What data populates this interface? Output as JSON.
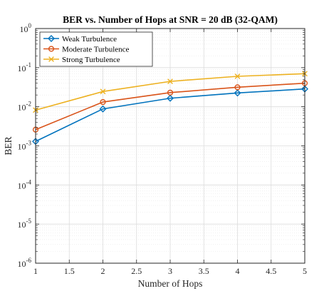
{
  "chart_data": {
    "type": "line",
    "title": "BER vs. Number of Hops at SNR = 20 dB (32-QAM)",
    "xlabel": "Number of Hops",
    "ylabel": "BER",
    "xlim": [
      1,
      5
    ],
    "ylim": [
      1e-06,
      1
    ],
    "yscale": "log",
    "grid": true,
    "minor_grid": true,
    "legend_position": "top-left",
    "x": [
      1,
      2,
      3,
      4,
      5
    ],
    "x_ticks": [
      "1",
      "1.5",
      "2",
      "2.5",
      "3",
      "3.5",
      "4",
      "4.5",
      "5"
    ],
    "y_tick_base": "10",
    "y_tick_exponents": [
      "0",
      "-1",
      "-2",
      "-3",
      "-4",
      "-5",
      "-6"
    ],
    "series": [
      {
        "name": "Weak Turbulence",
        "color": "#0072BD",
        "marker": "diamond",
        "values": [
          0.0013,
          0.0088,
          0.0165,
          0.0225,
          0.0285
        ]
      },
      {
        "name": "Moderate Turbulence",
        "color": "#D95319",
        "marker": "circle",
        "values": [
          0.0026,
          0.0132,
          0.023,
          0.0315,
          0.04
        ]
      },
      {
        "name": "Strong Turbulence",
        "color": "#EDB120",
        "marker": "x",
        "values": [
          0.0082,
          0.0245,
          0.0445,
          0.06,
          0.07
        ]
      }
    ]
  }
}
